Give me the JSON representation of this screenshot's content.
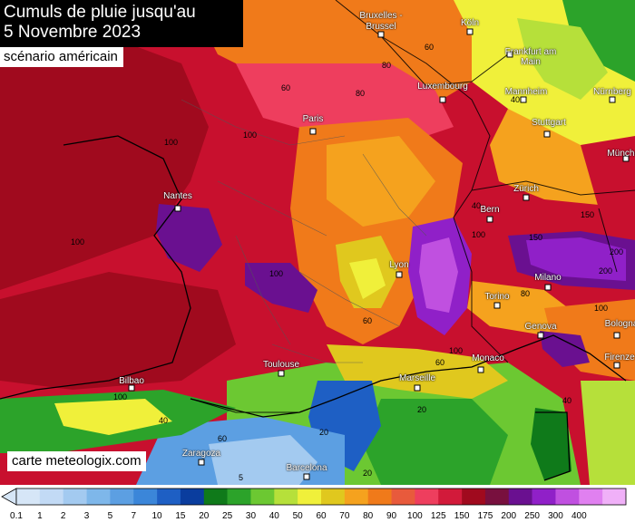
{
  "title": {
    "line1": "Cumuls de pluie jusqu'au",
    "line2": "5 Novembre 2023",
    "subtitle": "scénario américain"
  },
  "credit": "carte meteologix.com",
  "cities": [
    {
      "name": "Bruxelles - Brussel"
    },
    {
      "name": "Köln"
    },
    {
      "name": "Frankfurt am Main"
    },
    {
      "name": "Luxembourg"
    },
    {
      "name": "Mannheim"
    },
    {
      "name": "Nürnberg"
    },
    {
      "name": "Stuttgart"
    },
    {
      "name": "München"
    },
    {
      "name": "Paris"
    },
    {
      "name": "Nantes"
    },
    {
      "name": "Zürich"
    },
    {
      "name": "Bern"
    },
    {
      "name": "Lyon"
    },
    {
      "name": "Milano"
    },
    {
      "name": "Torino"
    },
    {
      "name": "Genova"
    },
    {
      "name": "Bologna"
    },
    {
      "name": "Firenze"
    },
    {
      "name": "Monaco"
    },
    {
      "name": "Marseille"
    },
    {
      "name": "Toulouse"
    },
    {
      "name": "Bilbao"
    },
    {
      "name": "Zaragoza"
    },
    {
      "name": "Barcelona"
    }
  ],
  "contour_labels": [
    "60",
    "60",
    "80",
    "80",
    "100",
    "100",
    "100",
    "100",
    "100",
    "100",
    "100",
    "150",
    "150",
    "200",
    "20",
    "40",
    "40",
    "60",
    "5",
    "20",
    "20",
    "60",
    "80",
    "100",
    "60",
    "200",
    "40",
    "40"
  ],
  "legend": {
    "ticks": [
      "0.1",
      "1",
      "2",
      "3",
      "5",
      "7",
      "10",
      "15",
      "20",
      "25",
      "30",
      "40",
      "50",
      "60",
      "70",
      "80",
      "90",
      "100",
      "125",
      "150",
      "175",
      "200",
      "250",
      "300",
      "400"
    ],
    "colors": [
      "#d6e6f7",
      "#c2daf5",
      "#a3caf0",
      "#7eb7ea",
      "#5c9fe2",
      "#3b86d9",
      "#1e5fc4",
      "#0a3d9e",
      "#0f7a1a",
      "#2ca32a",
      "#6cc832",
      "#b6e03a",
      "#f0f03a",
      "#e0c81e",
      "#f5a21e",
      "#f07a1a",
      "#e85a3c",
      "#ee3e5e",
      "#d21a3a",
      "#a00a1e",
      "#78103e",
      "#6a1090",
      "#9020c8",
      "#c050e0",
      "#e080f0",
      "#f0b0f8"
    ]
  }
}
